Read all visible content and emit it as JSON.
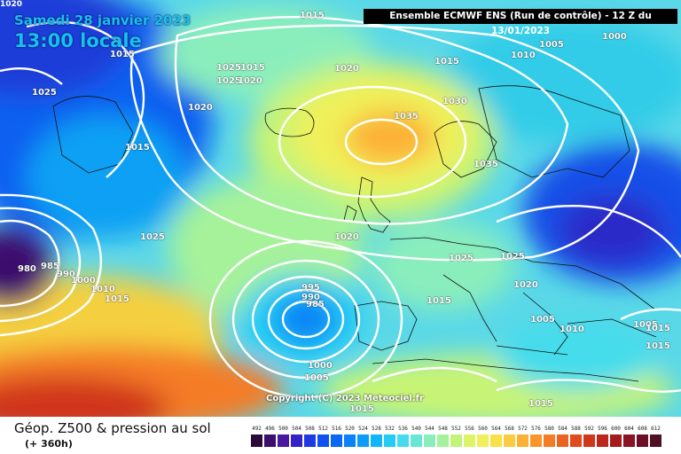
{
  "header": {
    "date": "Samedi 28 janvier 2023",
    "time": "13:00 locale",
    "corner_label": "1020",
    "model_run": "Ensemble ECMWF ENS  (Run de contrôle)  - 12 Z du 13/01/2023"
  },
  "copyright": "Copyright (C) 2023 Meteociel.fr",
  "footer": {
    "title": "Géop. Z500 & pression au sol",
    "subtitle": "(+ 360h)"
  },
  "legend": {
    "values": [
      "492",
      "496",
      "500",
      "504",
      "508",
      "512",
      "516",
      "520",
      "524",
      "528",
      "532",
      "536",
      "540",
      "544",
      "548",
      "552",
      "556",
      "560",
      "564",
      "568",
      "572",
      "576",
      "580",
      "584",
      "588",
      "592",
      "596",
      "600",
      "604",
      "608",
      "612"
    ],
    "colors": [
      "#2a0a3a",
      "#3c0e6e",
      "#4a17a0",
      "#3424c8",
      "#1f3ae0",
      "#1050f0",
      "#0a68f4",
      "#0a82f6",
      "#0a9cf8",
      "#10b6f8",
      "#24ccf4",
      "#44dcec",
      "#68e6d6",
      "#8aeebc",
      "#a6f29a",
      "#c2f47a",
      "#dcf466",
      "#f0f05a",
      "#f8e048",
      "#fcca40",
      "#fcb034",
      "#f8962c",
      "#f47c26",
      "#ec6222",
      "#e04a1e",
      "#d0361c",
      "#bc261c",
      "#a41c20",
      "#8a1424",
      "#6e0e26",
      "#501024"
    ]
  },
  "isobars": [
    {
      "id": "iso-1015-a",
      "text": "1015"
    },
    {
      "id": "iso-1015-b",
      "text": "1015"
    },
    {
      "id": "iso-1025-a",
      "text": "1025"
    },
    {
      "id": "iso-1025-b",
      "text": "1025"
    },
    {
      "id": "iso-1015-c",
      "text": "1015"
    },
    {
      "id": "iso-1025-c",
      "text": "1025"
    },
    {
      "id": "iso-1020-a",
      "text": "1020"
    },
    {
      "id": "iso-1020-b",
      "text": "1020"
    },
    {
      "id": "iso-1020-c",
      "text": "1020"
    },
    {
      "id": "iso-1015-d",
      "text": "1015"
    },
    {
      "id": "iso-1010-a",
      "text": "1010"
    },
    {
      "id": "iso-1005-a",
      "text": "1005"
    },
    {
      "id": "iso-1000-a",
      "text": "1000"
    },
    {
      "id": "iso-1030",
      "text": "1030"
    },
    {
      "id": "iso-1035-a",
      "text": "1035"
    },
    {
      "id": "iso-1035-b",
      "text": "1035"
    },
    {
      "id": "iso-1015-e",
      "text": "1015"
    },
    {
      "id": "iso-1025-d",
      "text": "1025"
    },
    {
      "id": "iso-980",
      "text": "980"
    },
    {
      "id": "iso-985-a",
      "text": "985"
    },
    {
      "id": "iso-990-a",
      "text": "990"
    },
    {
      "id": "iso-1000-w",
      "text": "1000"
    },
    {
      "id": "iso-1010-w",
      "text": "1010"
    },
    {
      "id": "iso-1015-w",
      "text": "1015"
    },
    {
      "id": "iso-1020-d",
      "text": "1020"
    },
    {
      "id": "iso-1025-e",
      "text": "1025"
    },
    {
      "id": "iso-1025-f",
      "text": "1025"
    },
    {
      "id": "iso-1020-e",
      "text": "1020"
    },
    {
      "id": "iso-995",
      "text": "995"
    },
    {
      "id": "iso-990-b",
      "text": "990"
    },
    {
      "id": "iso-985-b",
      "text": "985"
    },
    {
      "id": "iso-1015-f",
      "text": "1015"
    },
    {
      "id": "iso-1005-b",
      "text": "1005"
    },
    {
      "id": "iso-1010-b",
      "text": "1010"
    },
    {
      "id": "iso-1005-c",
      "text": "1005"
    },
    {
      "id": "iso-1015-g",
      "text": "1015"
    },
    {
      "id": "iso-1015-h",
      "text": "1015"
    },
    {
      "id": "iso-1000-b",
      "text": "1000"
    },
    {
      "id": "iso-1005-d",
      "text": "1005"
    },
    {
      "id": "iso-1015-i",
      "text": "1015"
    },
    {
      "id": "iso-1015-j",
      "text": "1015"
    }
  ]
}
